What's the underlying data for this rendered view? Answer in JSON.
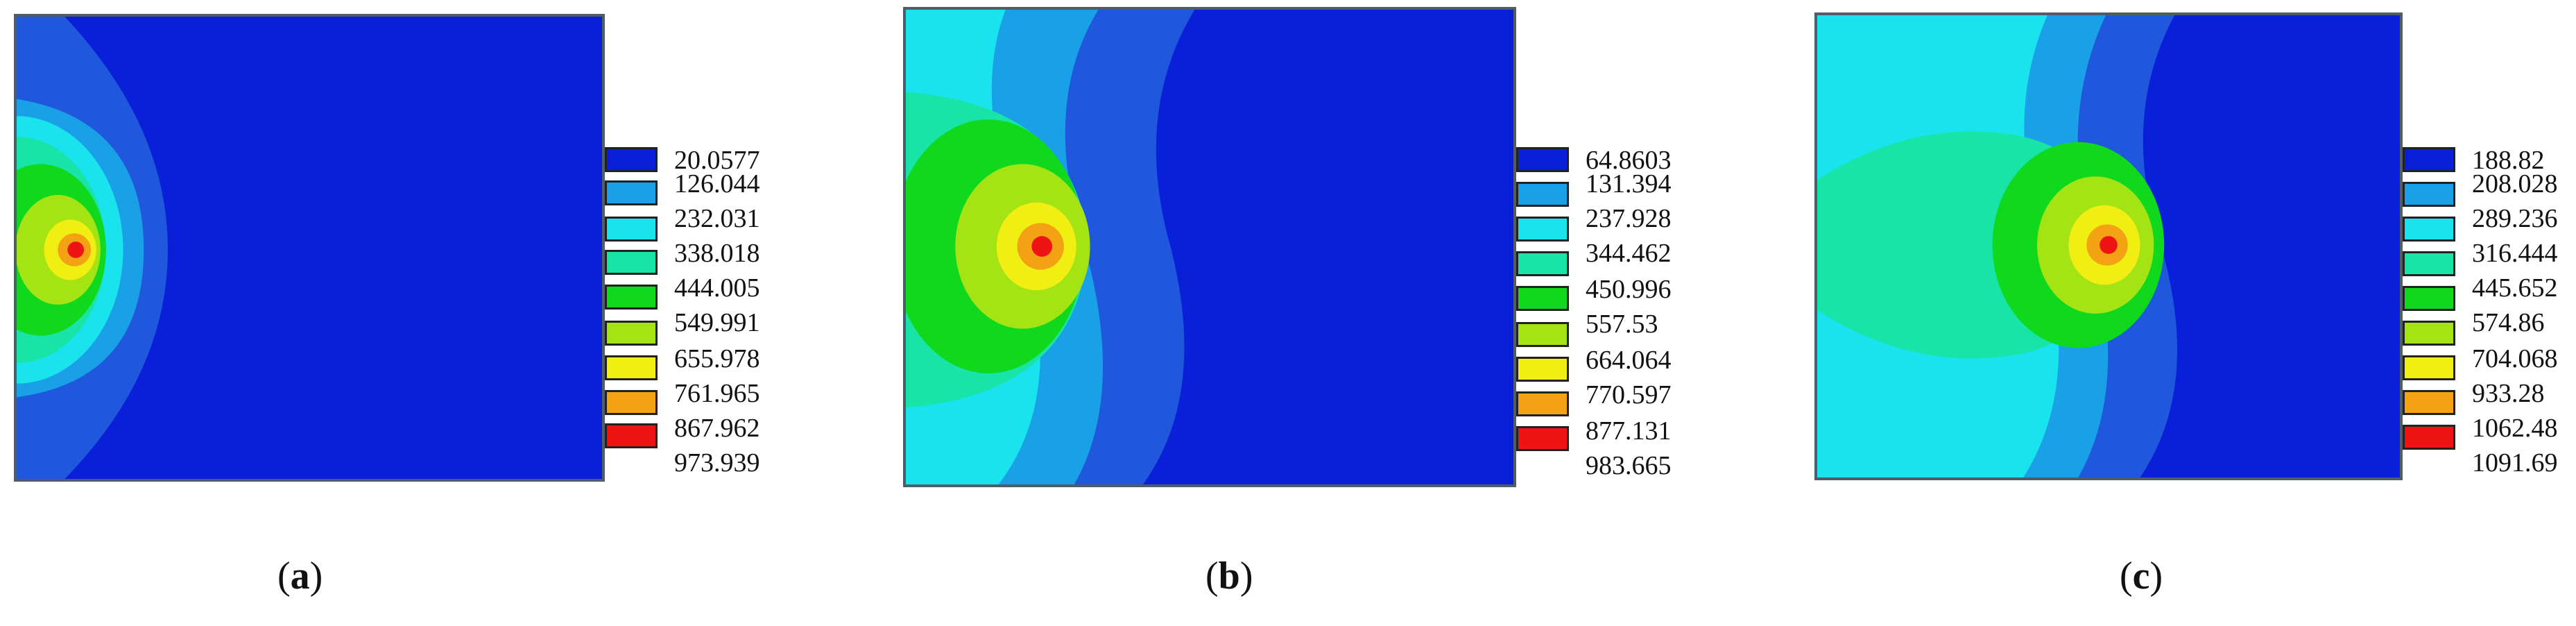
{
  "chart_data": [
    {
      "type": "heatmap",
      "panel_label_parts": [
        "(",
        "a",
        ")"
      ],
      "legend_values": [
        "20.0577",
        "126.044",
        "232.031",
        "338.018",
        "444.005",
        "549.991",
        "655.978",
        "761.965",
        "867.962",
        "973.939"
      ]
    },
    {
      "type": "heatmap",
      "panel_label_parts": [
        "(",
        "b",
        ")"
      ],
      "legend_values": [
        "64.8603",
        "131.394",
        "237.928",
        "344.462",
        "450.996",
        "557.53",
        "664.064",
        "770.597",
        "877.131",
        "983.665"
      ]
    },
    {
      "type": "heatmap",
      "panel_label_parts": [
        "(",
        "c",
        ")"
      ],
      "legend_values": [
        "188.82",
        "208.028",
        "289.236",
        "316.444",
        "445.652",
        "574.86",
        "704.068",
        "933.28",
        "1062.48",
        "1091.69"
      ]
    }
  ],
  "colors": {
    "band_0": "#0a1fd8",
    "band_1": "#1f58dc",
    "band_2": "#1aa0e6",
    "band_3": "#19e3ec",
    "band_4": "#17e4a6",
    "band_5": "#10d81c",
    "band_6": "#a4e414",
    "band_7": "#f0ee12",
    "band_8": "#f2a212",
    "band_9": "#ee1414",
    "plot_border": "#4f5d69"
  }
}
